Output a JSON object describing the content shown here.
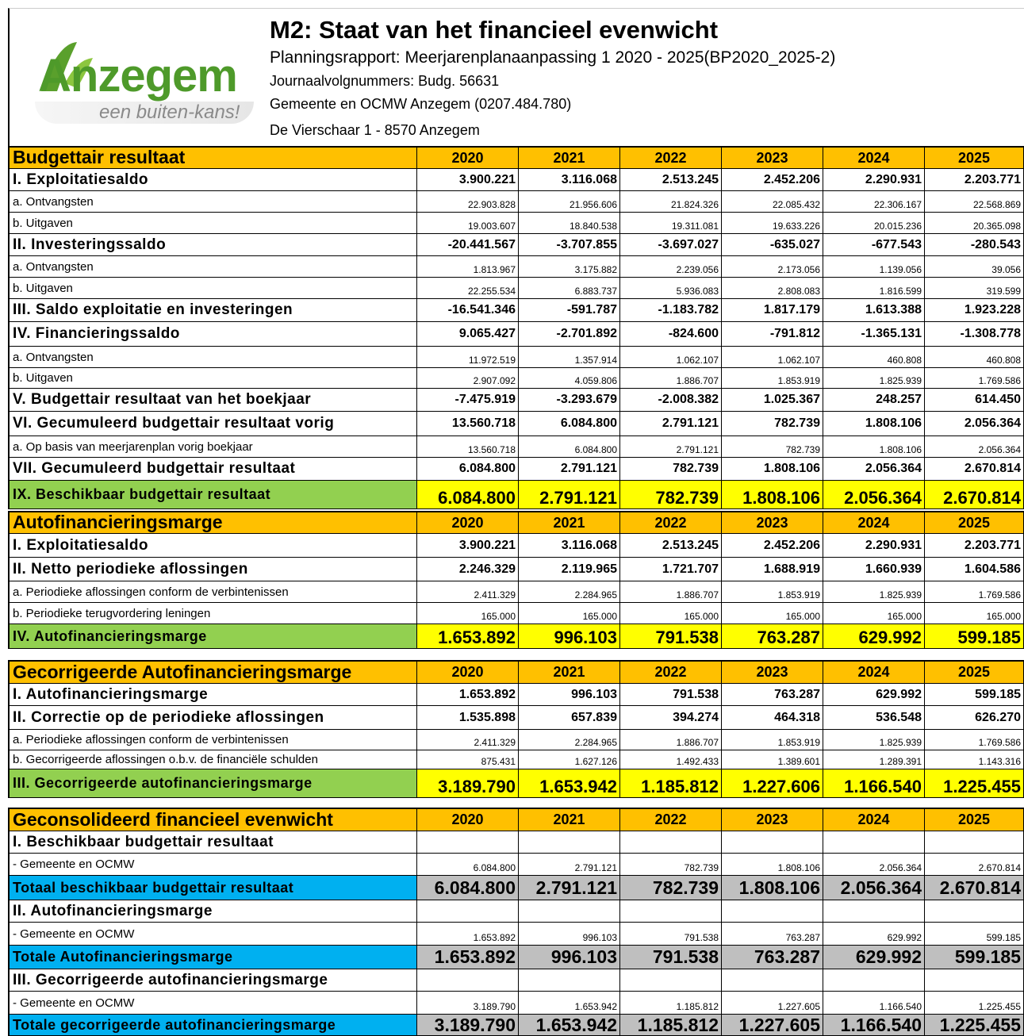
{
  "header": {
    "logo_name": "Anzegem",
    "logo_tagline": "een buiten-kans!",
    "title": "M2: Staat van het financieel evenwicht",
    "subtitle": "Planningsrapport: Meerjarenplanaanpassing 1 2020 - 2025(BP2020_2025-2)",
    "lines": [
      "Journaalvolgnummers: Budg. 56631",
      "Gemeente en OCMW Anzegem (0207.484.780)",
      "De Vierschaar 1 - 8570 Anzegem"
    ]
  },
  "sections": [
    {
      "title": "Budgettair resultaat",
      "years": [
        "2020",
        "2021",
        "2022",
        "2023",
        "2024",
        "2025"
      ],
      "rows": [
        {
          "label": "I. Exploitatiesaldo",
          "values": [
            "3.900.221",
            "3.116.068",
            "2.513.245",
            "2.452.206",
            "2.290.931",
            "2.203.771"
          ]
        },
        {
          "label": "a. Ontvangsten",
          "values": [
            "22.903.828",
            "21.956.606",
            "21.824.326",
            "22.085.432",
            "22.306.167",
            "22.568.869"
          ]
        },
        {
          "label": "b. Uitgaven",
          "values": [
            "19.003.607",
            "18.840.538",
            "19.311.081",
            "19.633.226",
            "20.015.236",
            "20.365.098"
          ]
        },
        {
          "label": "II. Investeringssaldo",
          "values": [
            "-20.441.567",
            "-3.707.855",
            "-3.697.027",
            "-635.027",
            "-677.543",
            "-280.543"
          ]
        },
        {
          "label": "a. Ontvangsten",
          "values": [
            "1.813.967",
            "3.175.882",
            "2.239.056",
            "2.173.056",
            "1.139.056",
            "39.056"
          ]
        },
        {
          "label": "b. Uitgaven",
          "values": [
            "22.255.534",
            "6.883.737",
            "5.936.083",
            "2.808.083",
            "1.816.599",
            "319.599"
          ]
        },
        {
          "label": "III. Saldo exploitatie en investeringen",
          "values": [
            "-16.541.346",
            "-591.787",
            "-1.183.782",
            "1.817.179",
            "1.613.388",
            "1.923.228"
          ]
        },
        {
          "label": "IV. Financieringssaldo",
          "values": [
            "9.065.427",
            "-2.701.892",
            "-824.600",
            "-791.812",
            "-1.365.131",
            "-1.308.778"
          ]
        },
        {
          "label": "a. Ontvangsten",
          "values": [
            "11.972.519",
            "1.357.914",
            "1.062.107",
            "1.062.107",
            "460.808",
            "460.808"
          ]
        },
        {
          "label": "b. Uitgaven",
          "values": [
            "2.907.092",
            "4.059.806",
            "1.886.707",
            "1.853.919",
            "1.825.939",
            "1.769.586"
          ]
        },
        {
          "label": "V. Budgettair resultaat van het boekjaar",
          "values": [
            "-7.475.919",
            "-3.293.679",
            "-2.008.382",
            "1.025.367",
            "248.257",
            "614.450"
          ]
        },
        {
          "label": "VI. Gecumuleerd budgettair resultaat vorig",
          "values": [
            "13.560.718",
            "6.084.800",
            "2.791.121",
            "782.739",
            "1.808.106",
            "2.056.364"
          ]
        },
        {
          "label": "a. Op basis van meerjarenplan vorig boekjaar",
          "values": [
            "13.560.718",
            "6.084.800",
            "2.791.121",
            "782.739",
            "1.808.106",
            "2.056.364"
          ]
        },
        {
          "label": "VII. Gecumuleerd budgettair resultaat",
          "values": [
            "6.084.800",
            "2.791.121",
            "782.739",
            "1.808.106",
            "2.056.364",
            "2.670.814"
          ]
        },
        {
          "label": "IX. Beschikbaar budgettair resultaat",
          "values": [
            "6.084.800",
            "2.791.121",
            "782.739",
            "1.808.106",
            "2.056.364",
            "2.670.814"
          ]
        }
      ]
    },
    {
      "title": "Autofinancieringsmarge",
      "years": [
        "2020",
        "2021",
        "2022",
        "2023",
        "2024",
        "2025"
      ],
      "rows": [
        {
          "label": "I. Exploitatiesaldo",
          "values": [
            "3.900.221",
            "3.116.068",
            "2.513.245",
            "2.452.206",
            "2.290.931",
            "2.203.771"
          ]
        },
        {
          "label": "II. Netto periodieke aflossingen",
          "values": [
            "2.246.329",
            "2.119.965",
            "1.721.707",
            "1.688.919",
            "1.660.939",
            "1.604.586"
          ]
        },
        {
          "label": "a. Periodieke aflossingen conform de verbintenissen",
          "values": [
            "2.411.329",
            "2.284.965",
            "1.886.707",
            "1.853.919",
            "1.825.939",
            "1.769.586"
          ]
        },
        {
          "label": "b. Periodieke terugvordering leningen",
          "values": [
            "165.000",
            "165.000",
            "165.000",
            "165.000",
            "165.000",
            "165.000"
          ]
        },
        {
          "label": "IV. Autofinancieringsmarge",
          "values": [
            "1.653.892",
            "996.103",
            "791.538",
            "763.287",
            "629.992",
            "599.185"
          ]
        }
      ]
    },
    {
      "title": "Gecorrigeerde Autofinancieringsmarge",
      "years": [
        "2020",
        "2021",
        "2022",
        "2023",
        "2024",
        "2025"
      ],
      "rows": [
        {
          "label": "I. Autofinancieringsmarge",
          "values": [
            "1.653.892",
            "996.103",
            "791.538",
            "763.287",
            "629.992",
            "599.185"
          ]
        },
        {
          "label": "II. Correctie op de periodieke aflossingen",
          "values": [
            "1.535.898",
            "657.839",
            "394.274",
            "464.318",
            "536.548",
            "626.270"
          ]
        },
        {
          "label": "a. Periodieke aflossingen conform de verbintenissen",
          "values": [
            "2.411.329",
            "2.284.965",
            "1.886.707",
            "1.853.919",
            "1.825.939",
            "1.769.586"
          ]
        },
        {
          "label": "b. Gecorrigeerde aflossingen o.b.v. de financiële schulden",
          "values": [
            "875.431",
            "1.627.126",
            "1.492.433",
            "1.389.601",
            "1.289.391",
            "1.143.316"
          ]
        },
        {
          "label": "III. Gecorrigeerde autofinancieringsmarge",
          "values": [
            "3.189.790",
            "1.653.942",
            "1.185.812",
            "1.227.606",
            "1.166.540",
            "1.225.455"
          ]
        }
      ]
    },
    {
      "title": "Geconsolideerd financieel evenwicht",
      "years": [
        "2020",
        "2021",
        "2022",
        "2023",
        "2024",
        "2025"
      ],
      "rows": [
        {
          "label": "I. Beschikbaar budgettair resultaat"
        },
        {
          "label": "- Gemeente en OCMW",
          "values": [
            "6.084.800",
            "2.791.121",
            "782.739",
            "1.808.106",
            "2.056.364",
            "2.670.814"
          ]
        },
        {
          "label": "Totaal beschikbaar budgettair resultaat",
          "values": [
            "6.084.800",
            "2.791.121",
            "782.739",
            "1.808.106",
            "2.056.364",
            "2.670.814"
          ]
        },
        {
          "label": "II. Autofinancieringsmarge"
        },
        {
          "label": "- Gemeente en OCMW",
          "values": [
            "1.653.892",
            "996.103",
            "791.538",
            "763.287",
            "629.992",
            "599.185"
          ]
        },
        {
          "label": "Totale Autofinancieringsmarge",
          "values": [
            "1.653.892",
            "996.103",
            "791.538",
            "763.287",
            "629.992",
            "599.185"
          ]
        },
        {
          "label": "III. Gecorrigeerde autofinancieringsmarge"
        },
        {
          "label": "- Gemeente en OCMW",
          "values": [
            "3.189.790",
            "1.653.942",
            "1.185.812",
            "1.227.605",
            "1.166.540",
            "1.225.455"
          ]
        },
        {
          "label": "Totale gecorrigeerde autofinancieringsmarge",
          "values": [
            "3.189.790",
            "1.653.942",
            "1.185.812",
            "1.227.605",
            "1.166.540",
            "1.225.455"
          ]
        }
      ]
    }
  ]
}
